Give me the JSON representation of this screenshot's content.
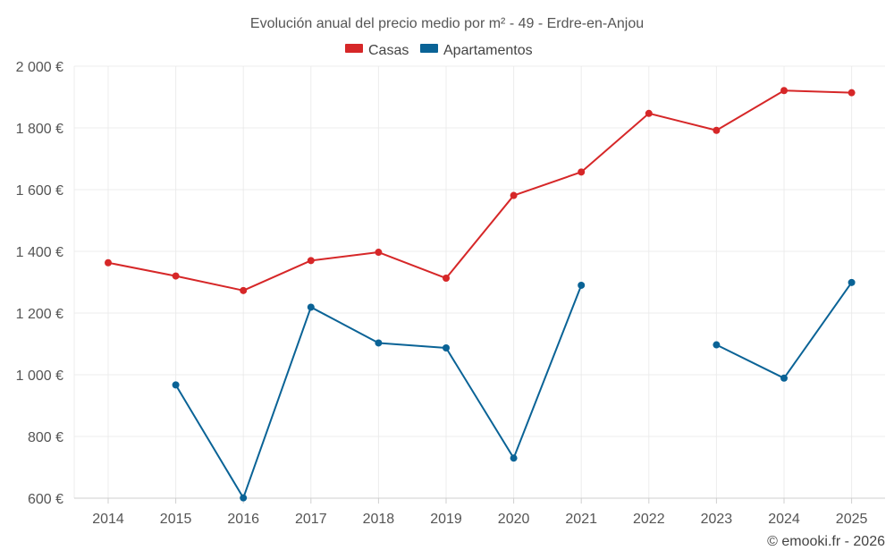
{
  "chart_data": {
    "type": "line",
    "title": "Evolución anual del precio medio por m² - 49 - Erdre-en-Anjou",
    "categories": [
      "2014",
      "2015",
      "2016",
      "2017",
      "2018",
      "2019",
      "2020",
      "2021",
      "2022",
      "2023",
      "2024",
      "2025"
    ],
    "series": [
      {
        "name": "Casas",
        "color": "#d62728",
        "values": [
          1363,
          1320,
          1273,
          1370,
          1397,
          1313,
          1581,
          1657,
          1847,
          1792,
          1921,
          1914
        ]
      },
      {
        "name": "Apartamentos",
        "color": "#0a6396",
        "values": [
          null,
          967,
          601,
          1219,
          1103,
          1087,
          730,
          1290,
          null,
          1097,
          989,
          1299
        ]
      }
    ],
    "ylim": [
      600,
      2000
    ],
    "yticks": [
      600,
      800,
      1000,
      1200,
      1400,
      1600,
      1800,
      2000
    ],
    "ytick_labels": [
      "600 €",
      "800 €",
      "1 000 €",
      "1 200 €",
      "1 400 €",
      "1 600 €",
      "1 800 €",
      "2 000 €"
    ],
    "grid": true,
    "legend_position": "top-center"
  },
  "credit": "© emooki.fr - 2026"
}
